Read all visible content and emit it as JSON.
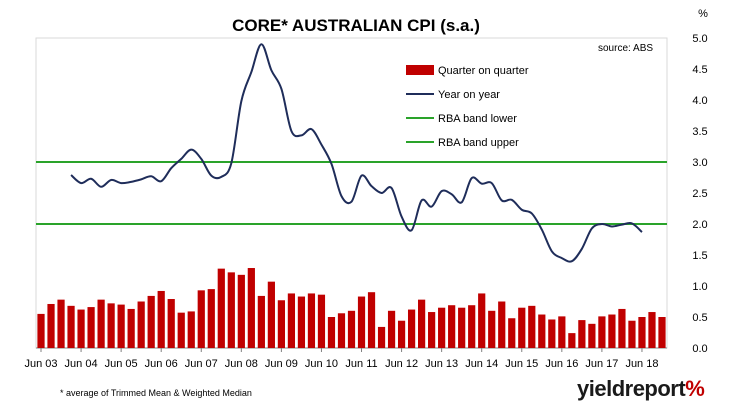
{
  "chart_data": {
    "type": "bar+line",
    "title": "CORE* AUSTRALIAN CPI (s.a.)",
    "unit_label": "%",
    "source": "source: ABS",
    "footnote": "* average of Trimmed Mean & Weighted Median",
    "ylim": [
      0,
      5
    ],
    "yticks": [
      "0.0",
      "0.5",
      "1.0",
      "1.5",
      "2.0",
      "2.5",
      "3.0",
      "3.5",
      "4.0",
      "4.5",
      "5.0"
    ],
    "xticks": [
      "Jun 03",
      "Jun 04",
      "Jun 05",
      "Jun 06",
      "Jun 07",
      "Jun 08",
      "Jun 09",
      "Jun 10",
      "Jun 11",
      "Jun 12",
      "Jun 13",
      "Jun 14",
      "Jun 15",
      "Jun 16",
      "Jun 17",
      "Jun 18"
    ],
    "x_start": "Jun 03",
    "grid": false,
    "legend": [
      "Quarter on quarter",
      "Year on year",
      "RBA band lower",
      "RBA band upper"
    ],
    "series": [
      {
        "name": "Quarter on quarter",
        "type": "bar",
        "color": "#c00000",
        "values": [
          0.55,
          0.71,
          0.78,
          0.68,
          0.62,
          0.66,
          0.78,
          0.72,
          0.7,
          0.63,
          0.75,
          0.84,
          0.92,
          0.79,
          0.57,
          0.59,
          0.93,
          0.95,
          1.28,
          1.22,
          1.18,
          1.29,
          0.84,
          1.07,
          0.77,
          0.88,
          0.83,
          0.88,
          0.86,
          0.5,
          0.56,
          0.6,
          0.83,
          0.9,
          0.34,
          0.6,
          0.44,
          0.62,
          0.78,
          0.58,
          0.65,
          0.69,
          0.65,
          0.69,
          0.88,
          0.6,
          0.75,
          0.48,
          0.65,
          0.68,
          0.54,
          0.46,
          0.51,
          0.24,
          0.45,
          0.39,
          0.51,
          0.54,
          0.63,
          0.44,
          0.5,
          0.58,
          0.5
        ]
      },
      {
        "name": "Year on year",
        "type": "line",
        "color": "#1f2d5a",
        "values": [
          2.79,
          2.66,
          2.73,
          2.6,
          2.71,
          2.66,
          2.68,
          2.72,
          2.77,
          2.69,
          2.9,
          3.05,
          3.2,
          3.05,
          2.78,
          2.76,
          2.98,
          3.98,
          4.45,
          4.9,
          4.48,
          4.18,
          3.5,
          3.43,
          3.53,
          3.28,
          2.97,
          2.45,
          2.36,
          2.78,
          2.61,
          2.5,
          2.58,
          2.12,
          1.9,
          2.38,
          2.28,
          2.53,
          2.48,
          2.35,
          2.74,
          2.65,
          2.66,
          2.38,
          2.39,
          2.23,
          2.17,
          1.91,
          1.56,
          1.45,
          1.4,
          1.6,
          1.93,
          2.0,
          1.96,
          1.99,
          2.01,
          1.87
        ]
      },
      {
        "name": "RBA band lower",
        "type": "hline",
        "color": "#2aa32a",
        "value": 2.0
      },
      {
        "name": "RBA band upper",
        "type": "hline",
        "color": "#2aa32a",
        "value": 3.0
      }
    ]
  },
  "branding": {
    "logo_text": "yieldreport",
    "logo_mark": "%"
  }
}
